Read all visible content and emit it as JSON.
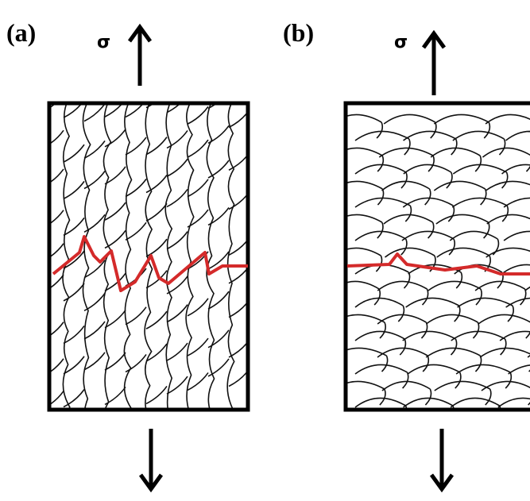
{
  "panels": [
    {
      "label": "(a)",
      "stress": "σ"
    },
    {
      "label": "(b)",
      "stress": "σ"
    }
  ]
}
